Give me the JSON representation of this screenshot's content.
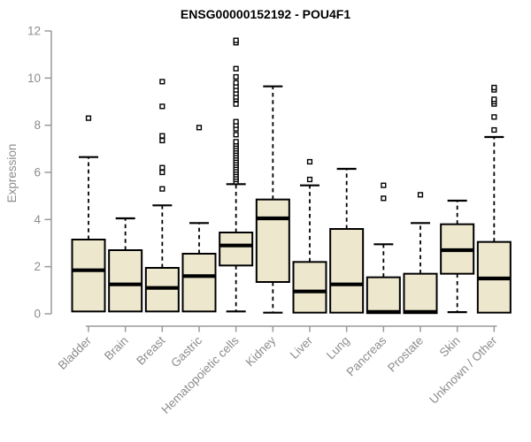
{
  "chart_data": {
    "type": "boxplot",
    "title": "ENSG00000152192 - POU4F1",
    "ylabel": "Expression",
    "xlabel": "",
    "ylim": [
      0,
      12
    ],
    "yticks": [
      0,
      2,
      4,
      6,
      8,
      10,
      12
    ],
    "grid": false,
    "x_label_rotation": 45,
    "categories": [
      "Bladder",
      "Brain",
      "Breast",
      "Gastric",
      "Hematopoietic cells",
      "Kidney",
      "Liver",
      "Lung",
      "Pancreas",
      "Prostate",
      "Skin",
      "Unknown / Other"
    ],
    "series": [
      {
        "name": "Bladder",
        "whisker_low": 0.05,
        "q1": 0.1,
        "median": 1.85,
        "q3": 3.15,
        "whisker_high": 6.65,
        "outliers": [
          8.3
        ]
      },
      {
        "name": "Brain",
        "whisker_low": 0.05,
        "q1": 0.1,
        "median": 1.25,
        "q3": 2.7,
        "whisker_high": 4.05,
        "outliers": []
      },
      {
        "name": "Breast",
        "whisker_low": 0.05,
        "q1": 0.1,
        "median": 1.1,
        "q3": 1.95,
        "whisker_high": 4.6,
        "outliers": [
          5.3,
          6.0,
          6.2,
          7.35,
          7.55,
          8.8,
          9.85
        ]
      },
      {
        "name": "Gastric",
        "whisker_low": 0.05,
        "q1": 0.1,
        "median": 1.6,
        "q3": 2.55,
        "whisker_high": 3.85,
        "outliers": [
          7.9
        ]
      },
      {
        "name": "Hematopoietic cells",
        "whisker_low": 0.1,
        "q1": 2.05,
        "median": 2.9,
        "q3": 3.45,
        "whisker_high": 5.5,
        "outliers": [
          5.6,
          5.7,
          5.8,
          5.9,
          6.0,
          6.1,
          6.2,
          6.3,
          6.4,
          6.5,
          6.6,
          6.7,
          6.8,
          6.9,
          7.0,
          7.1,
          7.2,
          7.3,
          7.6,
          7.85,
          8.0,
          8.15,
          8.9,
          9.1,
          9.2,
          9.35,
          9.5,
          9.65,
          9.8,
          10.05,
          10.4,
          11.5,
          11.6
        ]
      },
      {
        "name": "Kidney",
        "whisker_low": 0.05,
        "q1": 1.35,
        "median": 4.05,
        "q3": 4.85,
        "whisker_high": 9.65,
        "outliers": []
      },
      {
        "name": "Liver",
        "whisker_low": 0.03,
        "q1": 0.05,
        "median": 0.95,
        "q3": 2.2,
        "whisker_high": 5.45,
        "outliers": [
          5.7,
          6.45
        ]
      },
      {
        "name": "Lung",
        "whisker_low": 0.03,
        "q1": 0.05,
        "median": 1.25,
        "q3": 3.6,
        "whisker_high": 6.15,
        "outliers": []
      },
      {
        "name": "Pancreas",
        "whisker_low": 0.02,
        "q1": 0.03,
        "median": 0.08,
        "q3": 1.55,
        "whisker_high": 2.95,
        "outliers": [
          4.9,
          5.45
        ]
      },
      {
        "name": "Prostate",
        "whisker_low": 0.02,
        "q1": 0.03,
        "median": 0.08,
        "q3": 1.7,
        "whisker_high": 3.85,
        "outliers": [
          5.05
        ]
      },
      {
        "name": "Skin",
        "whisker_low": 0.07,
        "q1": 1.7,
        "median": 2.7,
        "q3": 3.8,
        "whisker_high": 4.8,
        "outliers": []
      },
      {
        "name": "Unknown / Other",
        "whisker_low": 0.03,
        "q1": 0.05,
        "median": 1.5,
        "q3": 3.05,
        "whisker_high": 7.5,
        "outliers": [
          7.8,
          8.35,
          8.9,
          9.0,
          9.1,
          9.5,
          9.6
        ]
      }
    ],
    "colors": {
      "box_fill": "#EDE8CD",
      "box_border": "#000000",
      "median": "#000000",
      "whisker": "#000000",
      "outlier_fill": "#ffffff",
      "outlier_border": "#000000",
      "axis": "#9a9a9a",
      "tick_text": "#8c8c8c",
      "title_text": "#000000",
      "background": "#ffffff"
    }
  }
}
